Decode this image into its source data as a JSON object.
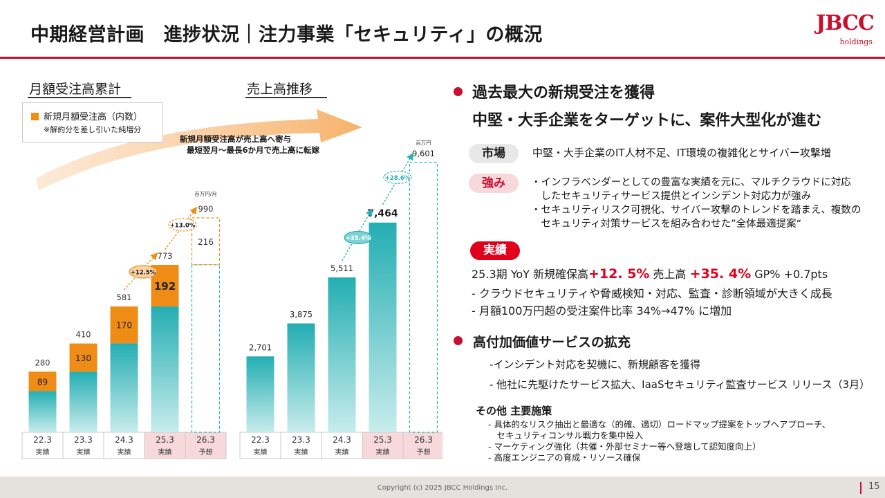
{
  "header": {
    "title": "中期経営計画　進捗状況｜注力事業「セキュリティ」の概況",
    "logo_main": "JBCC",
    "logo_sub": "holdings"
  },
  "left_chart": {
    "label": "月額受注高累計",
    "legend_main": "新規月額受注高（内数）",
    "legend_note": "※解約分を差し引いた純増分",
    "unit": "百万円/月"
  },
  "right_chart": {
    "label": "売上高推移",
    "unit": "百万円"
  },
  "arrow_note": {
    "line1": "新規月額受注高が売上高へ寄与",
    "line2": "最短翌月～最長6か月で売上高に転嫁"
  },
  "chart_data": [
    {
      "type": "bar",
      "title": "月額受注高累計",
      "categories": [
        "22.3",
        "23.3",
        "24.3",
        "25.3",
        "26.3"
      ],
      "category_sublabels": [
        "実績",
        "実績",
        "実績",
        "実績",
        "予想"
      ],
      "highlighted_categories": [
        "25.3",
        "26.3"
      ],
      "unit": "百万円/月",
      "series": [
        {
          "name": "新規月額受注高（内数）",
          "values": [
            89,
            130,
            170,
            192,
            216
          ]
        }
      ],
      "totals": [
        280,
        410,
        581,
        773,
        990
      ],
      "forecast_index": 4,
      "growth_labels": [
        {
          "from": "24.3",
          "to": "25.3",
          "text": "+12.5%"
        },
        {
          "from": "25.3",
          "to": "26.3",
          "text": "+13.0%"
        }
      ],
      "ylim": [
        0,
        1100
      ],
      "colors": {
        "base": "#27b0b4",
        "new": "#ef8c16"
      }
    },
    {
      "type": "bar",
      "title": "売上高推移",
      "categories": [
        "22.3",
        "23.3",
        "24.3",
        "25.3",
        "26.3"
      ],
      "category_sublabels": [
        "実績",
        "実績",
        "実績",
        "実績",
        "予想"
      ],
      "highlighted_categories": [
        "25.3",
        "26.3"
      ],
      "unit": "百万円",
      "values": [
        2701,
        3875,
        5511,
        7464,
        9601
      ],
      "value_labels": [
        "2,701",
        "3,875",
        "5,511",
        "7,464",
        "9,601"
      ],
      "forecast_index": 4,
      "growth_labels": [
        {
          "from": "24.3",
          "to": "25.3",
          "text": "+35.4%"
        },
        {
          "from": "25.3",
          "to": "26.3",
          "text": "+28.6%"
        }
      ],
      "ylim": [
        0,
        10800
      ],
      "colors": {
        "base": "#27b0b4"
      }
    }
  ],
  "right": {
    "h1_line1": "過去最大の新規受注を獲得",
    "h1_line2": "中堅・大手企業をターゲットに、案件大型化が進む",
    "market_label": "市場",
    "market_text": "中堅・大手企業のIT人材不足、IT環境の複雑化とサイバー攻撃増",
    "strength_label": "強み",
    "strength_lines": [
      "・インフラベンダーとしての豊富な実績を元に、マルチクラウドに対応",
      "　したセキュリティサービス提供とインシデント対応力が強み",
      "・セキュリティリスク可視化、サイバー攻撃のトレンドを踏まえ、複数の",
      "　セキュリティ対策サービスを組み合わせた”全体最適提案“"
    ],
    "results_label": "実績",
    "results_line1_a": "25.3期 YoY  新規確保高",
    "results_line1_b": "+12. 5%",
    "results_line1_c": " 売上高 ",
    "results_line1_d": "+35. 4%",
    "results_line1_e": "  GP% +0.7pts",
    "results_line2": "- クラウドセキュリティや脅威検知・対応、監査・診断領域が大きく成長",
    "results_line3": "- 月額100万円超の受注案件比率 34%→47% に増加",
    "h2": "高付加価値サービスの拡充",
    "h2_item1": "-インシデント対応を契機に、新規顧客を獲得",
    "h2_item2": "- 他社に先駆けたサービス拡大、IaaSセキュリティ監査サービス リリース（3月）",
    "other_title": "その他  主要施策",
    "other_items": [
      "- 具体的なリスク抽出と最適な（的確、適切）ロードマップ提案をトップへアプローチ、",
      "　セキュリティコンサル戦力を集中投入",
      "- マーケティング強化（共催・外部セミナー等へ登壇して認知度向上）",
      "- 高度エンジニアの育成・リソース確保"
    ]
  },
  "footer": {
    "copyright": "Copyright (c) 2025 JBCC Holdings Inc.",
    "page": "15"
  }
}
